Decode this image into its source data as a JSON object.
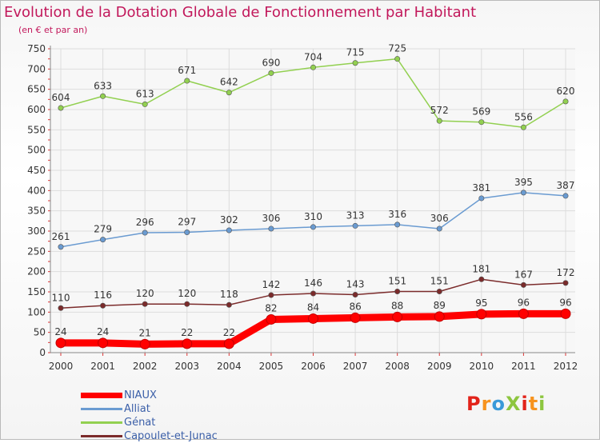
{
  "title": "Evolution de la Dotation Globale de Fonctionnement par Habitant",
  "subtitle": "(en € et par an)",
  "logo": {
    "text": "ProXiti",
    "colors": [
      "#e2231a",
      "#f7931e",
      "#3a9ad9",
      "#8dc63f",
      "#e2231a",
      "#f7931e",
      "#8dc63f"
    ]
  },
  "chart_data": {
    "type": "line",
    "title": "Evolution de la Dotation Globale de Fonctionnement par Habitant",
    "subtitle": "(en € et par an)",
    "x": [
      "2000",
      "2001",
      "2002",
      "2003",
      "2004",
      "2005",
      "2006",
      "2007",
      "2008",
      "2009",
      "2010",
      "2011",
      "2012"
    ],
    "ylim": [
      0,
      750
    ],
    "yticks": [
      0,
      50,
      100,
      150,
      200,
      250,
      300,
      350,
      400,
      450,
      500,
      550,
      600,
      650,
      700,
      750
    ],
    "grid": true,
    "legend_position": "bottom-left",
    "series": [
      {
        "name": "NIAUX",
        "color": "#ff0000",
        "values": [
          24,
          24,
          21,
          22,
          22,
          82,
          84,
          86,
          88,
          89,
          95,
          96,
          96
        ]
      },
      {
        "name": "Alliat",
        "color": "#6a9bd1",
        "values": [
          261,
          279,
          296,
          297,
          302,
          306,
          310,
          313,
          316,
          306,
          381,
          395,
          387
        ]
      },
      {
        "name": "Génat",
        "color": "#92d050",
        "values": [
          604,
          633,
          613,
          671,
          642,
          690,
          704,
          715,
          725,
          572,
          569,
          556,
          620
        ]
      },
      {
        "name": "Capoulet-et-Junac",
        "color": "#7b2b2b",
        "values": [
          110,
          116,
          120,
          120,
          118,
          142,
          146,
          143,
          151,
          151,
          181,
          167,
          172
        ]
      }
    ]
  }
}
